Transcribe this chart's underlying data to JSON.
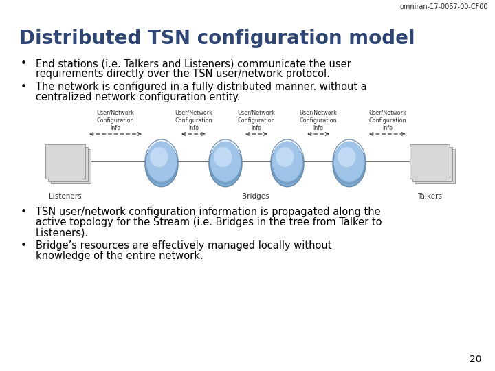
{
  "header": "omniran-17-0067-00-CF00",
  "title": "Distributed TSN configuration model",
  "bullet1_line1": "End stations (i.e. Talkers and Listeners) communicate the user",
  "bullet1_line2": "requirements directly over the TSN user/network protocol.",
  "bullet2_line1": "The network is configured in a fully distributed manner. without a",
  "bullet2_line2": "centralized network configuration entity.",
  "bullet3_line1": "TSN user/network configuration information is propagated along the",
  "bullet3_line2": "active topology for the Stream (i.e. Bridges in the tree from Talker to",
  "bullet3_line3": "Listeners).",
  "bullet4_line1": "Bridge’s resources are effectively managed locally without",
  "bullet4_line2": "knowledge of the entire network.",
  "page_number": "20",
  "title_color": "#2F4674",
  "header_color": "#222222",
  "body_color": "#000000",
  "diagram_label_listeners": "Listeners",
  "diagram_label_bridges": "Bridges",
  "diagram_label_talkers": "Talkers",
  "diagram_label_info": "User/Network\nConfiguration\nInfo",
  "sphere_color_top": "#c8dff5",
  "sphere_color_mid": "#a0c4e8",
  "sphere_color_bot": "#7aaad0",
  "page_rect_color": "#d8d8d8",
  "line_color": "#555555",
  "arrow_color": "#333333",
  "info_text_color": "#333333",
  "diagram_label_color": "#333333"
}
